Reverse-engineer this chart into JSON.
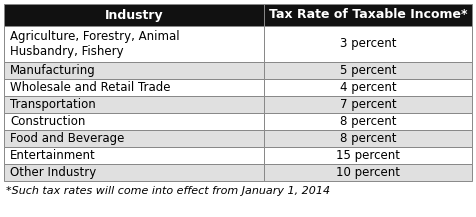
{
  "header": [
    "Industry",
    "Tax Rate of Taxable Income*"
  ],
  "rows": [
    [
      "Agriculture, Forestry, Animal\nHusbandry, Fishery",
      "3 percent"
    ],
    [
      "Manufacturing",
      "5 percent"
    ],
    [
      "Wholesale and Retail Trade",
      "4 percent"
    ],
    [
      "Transportation",
      "7 percent"
    ],
    [
      "Construction",
      "8 percent"
    ],
    [
      "Food and Beverage",
      "8 percent"
    ],
    [
      "Entertainment",
      "15 percent"
    ],
    [
      "Other Industry",
      "10 percent"
    ]
  ],
  "footnote": "*Such tax rates will come into effect from January 1, 2014",
  "header_bg": "#111111",
  "header_fg": "#ffffff",
  "row_bg_odd": "#ffffff",
  "row_bg_even": "#e0e0e0",
  "border_color": "#888888",
  "font_size": 8.5,
  "header_font_size": 9.0
}
